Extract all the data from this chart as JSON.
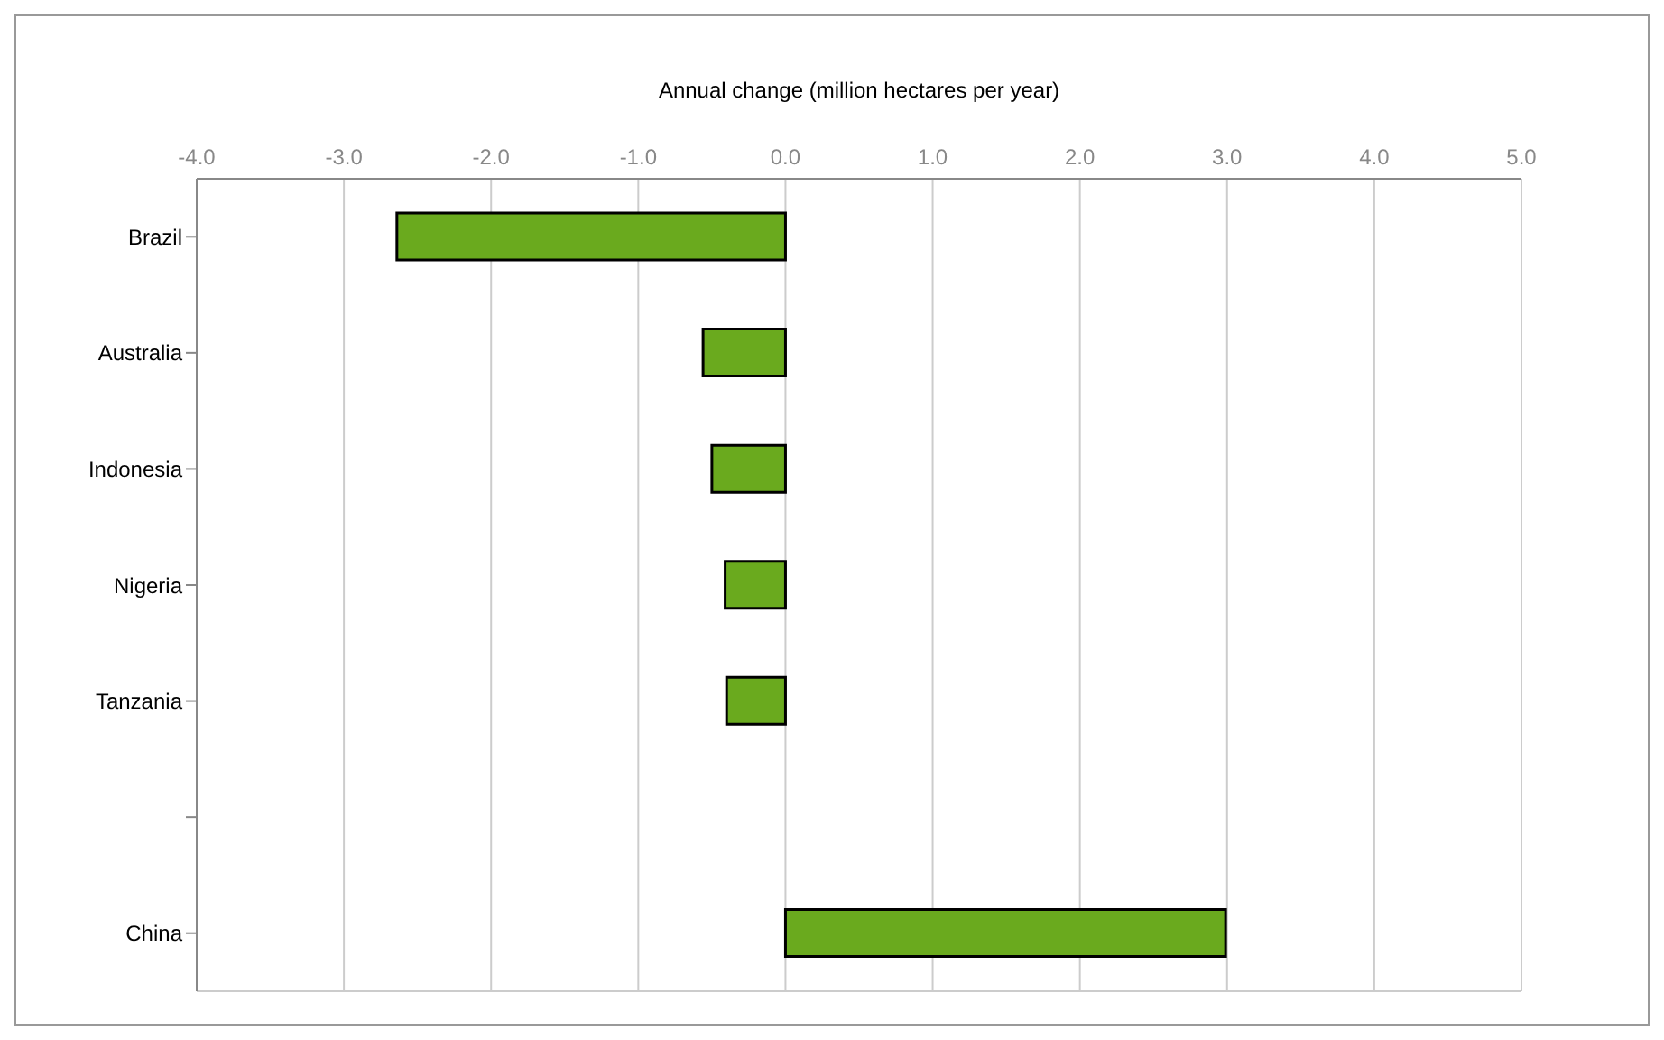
{
  "chart_data": {
    "type": "bar",
    "orientation": "horizontal",
    "xlabel": "Annual change (million hectares per year)",
    "categories": [
      "Brazil",
      "Australia",
      "Indonesia",
      "Nigeria",
      "Tanzania",
      null,
      "China"
    ],
    "values": [
      -2.64,
      -0.56,
      -0.5,
      -0.41,
      -0.4,
      null,
      2.99
    ],
    "color": "#6aaa1e",
    "xlim": [
      -4,
      5
    ],
    "xticks": [
      {
        "value": -4,
        "label": "-4.0"
      },
      {
        "value": -3,
        "label": "-3.0"
      },
      {
        "value": -2,
        "label": "-2.0"
      },
      {
        "value": -1,
        "label": "-1.0"
      },
      {
        "value": 0,
        "label": "0.0"
      },
      {
        "value": 1,
        "label": "1.0"
      },
      {
        "value": 2,
        "label": "2.0"
      },
      {
        "value": 3,
        "label": "3.0"
      },
      {
        "value": 4,
        "label": "4.0"
      },
      {
        "value": 5,
        "label": "5.0"
      }
    ],
    "grid": "x",
    "legend": false
  }
}
